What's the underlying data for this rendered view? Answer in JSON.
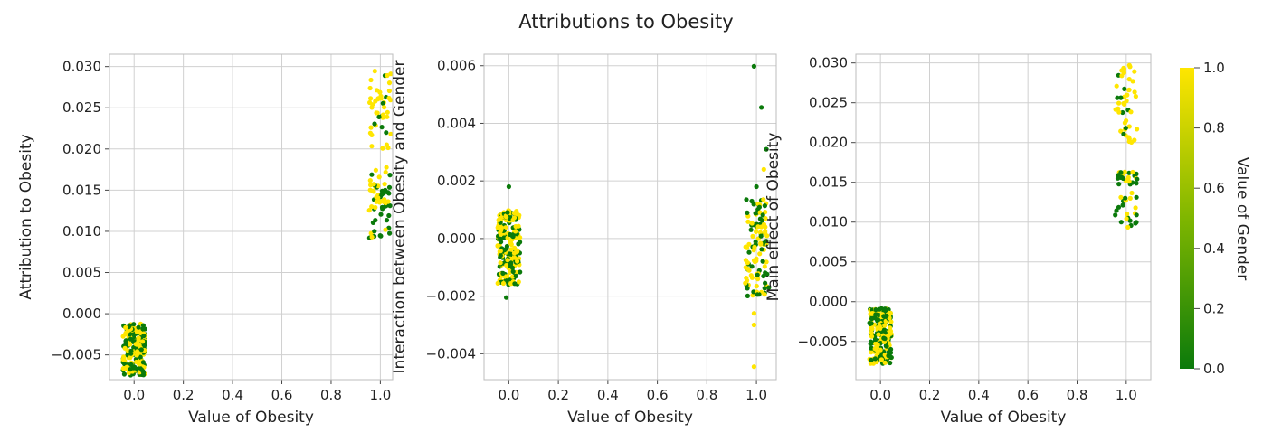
{
  "figure": {
    "title": "Attributions to Obesity"
  },
  "colorbar": {
    "label": "Value of Gender",
    "ticks": [
      "0.0",
      "0.2",
      "0.4",
      "0.6",
      "0.8",
      "1.0"
    ],
    "color_low": "#0b7a0b",
    "color_high": "#ffe600"
  },
  "chart_data": [
    {
      "type": "scatter",
      "title": "",
      "xlabel": "Value of Obesity",
      "ylabel": "Attribution to Obesity",
      "xlim": [
        -0.1,
        1.05
      ],
      "ylim": [
        -0.008,
        0.0315
      ],
      "xticks": [
        "0.0",
        "0.2",
        "0.4",
        "0.6",
        "0.8",
        "1.0"
      ],
      "yticks": [
        "−0.005",
        "0.000",
        "0.005",
        "0.010",
        "0.015",
        "0.020",
        "0.025",
        "0.030"
      ],
      "grid": true,
      "color_by": "Value of Gender",
      "clusters": [
        {
          "x_center": 0.0,
          "x_jitter": 0.045,
          "y_range": [
            -0.0075,
            -0.0012
          ],
          "n": 220,
          "gender_yellow_share": 0.5
        },
        {
          "x_center": 1.0,
          "x_jitter": 0.045,
          "y_range": [
            0.0092,
            0.0165
          ],
          "n": 40,
          "gender_yellow_share": 0.15
        },
        {
          "x_center": 1.0,
          "x_jitter": 0.045,
          "y_range": [
            0.0125,
            0.018
          ],
          "n": 25,
          "gender_yellow_share": 0.9
        },
        {
          "x_center": 1.0,
          "x_jitter": 0.045,
          "y_range": [
            0.02,
            0.0295
          ],
          "n": 45,
          "gender_yellow_share": 0.85
        }
      ]
    },
    {
      "type": "scatter",
      "title": "",
      "xlabel": "Value of Obesity",
      "ylabel": "Interaction between Obesity and Gender",
      "xlim": [
        -0.1,
        1.08
      ],
      "ylim": [
        -0.0049,
        0.0064
      ],
      "xticks": [
        "0.0",
        "0.2",
        "0.4",
        "0.6",
        "0.8",
        "1.0"
      ],
      "yticks": [
        "−0.004",
        "−0.002",
        "0.000",
        "0.002",
        "0.004",
        "0.006"
      ],
      "grid": true,
      "color_by": "Value of Gender",
      "clusters": [
        {
          "x_center": 0.0,
          "x_jitter": 0.045,
          "y_range": [
            -0.0016,
            0.001
          ],
          "n": 220,
          "gender_yellow_share": 0.5
        },
        {
          "x_center": 1.0,
          "x_jitter": 0.045,
          "y_range": [
            -0.002,
            0.0014
          ],
          "n": 110,
          "gender_yellow_share": 0.5
        }
      ],
      "extra_points": [
        {
          "x": -0.01,
          "y": -0.00205,
          "gender": 0
        },
        {
          "x": 0.0,
          "y": 0.0018,
          "gender": 0
        },
        {
          "x": 0.99,
          "y": 0.00598,
          "gender": 0
        },
        {
          "x": 1.02,
          "y": 0.00455,
          "gender": 0
        },
        {
          "x": 1.04,
          "y": 0.0031,
          "gender": 0
        },
        {
          "x": 1.03,
          "y": 0.0024,
          "gender": 1
        },
        {
          "x": 1.0,
          "y": 0.0018,
          "gender": 0
        },
        {
          "x": 0.99,
          "y": -0.0026,
          "gender": 1
        },
        {
          "x": 0.99,
          "y": -0.003,
          "gender": 1
        },
        {
          "x": 0.99,
          "y": -0.00445,
          "gender": 1
        },
        {
          "x": 1.05,
          "y": -0.0017,
          "gender": 0
        }
      ]
    },
    {
      "type": "scatter",
      "title": "",
      "xlabel": "Value of Obesity",
      "ylabel": "Main effect of Obesity",
      "xlim": [
        -0.1,
        1.1
      ],
      "ylim": [
        -0.0098,
        0.0311
      ],
      "xticks": [
        "0.0",
        "0.2",
        "0.4",
        "0.6",
        "0.8",
        "1.0"
      ],
      "yticks": [
        "−0.005",
        "0.000",
        "0.005",
        "0.010",
        "0.015",
        "0.020",
        "0.025",
        "0.030"
      ],
      "grid": true,
      "color_by": "Value of Gender",
      "clusters": [
        {
          "x_center": 0.0,
          "x_jitter": 0.045,
          "y_range": [
            -0.0078,
            -0.0008
          ],
          "n": 220,
          "gender_yellow_share": 0.5
        },
        {
          "x_center": 1.0,
          "x_jitter": 0.045,
          "y_range": [
            0.0092,
            0.0165
          ],
          "n": 45,
          "gender_yellow_share": 0.3
        },
        {
          "x_center": 1.0,
          "x_jitter": 0.045,
          "y_range": [
            0.02,
            0.0298
          ],
          "n": 45,
          "gender_yellow_share": 0.8
        }
      ]
    }
  ]
}
